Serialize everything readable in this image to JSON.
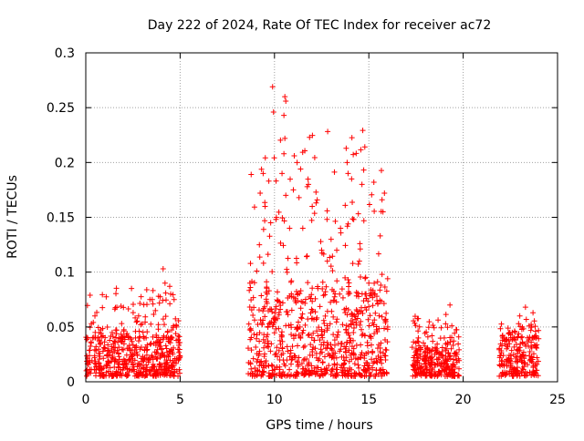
{
  "chart_data": {
    "type": "scatter",
    "title": "Day 222 of 2024, Rate Of TEC Index for receiver ac72",
    "xlabel": "GPS time / hours",
    "ylabel": "ROTI / TECUs",
    "xlim": [
      0,
      25
    ],
    "ylim": [
      0,
      0.3
    ],
    "xticks": [
      0,
      5,
      10,
      15,
      20,
      25
    ],
    "xtick_labels": [
      "0",
      "5",
      "10",
      "15",
      "20",
      "25"
    ],
    "yticks": [
      0,
      0.05,
      0.1,
      0.15,
      0.2,
      0.25,
      0.3
    ],
    "ytick_labels": [
      "0",
      "0.05",
      "0.1",
      "0.15",
      "0.2",
      "0.25",
      "0.3"
    ],
    "grid": true,
    "marker": "+",
    "colors": {
      "marker": "#ff0000",
      "grid": "#a0a0a0",
      "axis": "#000000"
    },
    "series": [
      {
        "name": "ROTI",
        "clusters": [
          {
            "x_range": [
              0.0,
              5.0
            ],
            "typical_range": [
              0.005,
              0.04
            ],
            "max": 0.1
          },
          {
            "x_range": [
              8.6,
              16.0
            ],
            "typical_range": [
              0.005,
              0.08
            ],
            "max": 0.27
          },
          {
            "x_range": [
              17.3,
              19.8
            ],
            "typical_range": [
              0.005,
              0.03
            ],
            "max": 0.07
          },
          {
            "x_range": [
              21.9,
              24.0
            ],
            "typical_range": [
              0.005,
              0.04
            ],
            "max": 0.07
          }
        ],
        "points": [
          [
            0.3,
            0.053
          ],
          [
            0.5,
            0.045
          ],
          [
            1.4,
            0.045
          ],
          [
            2.8,
            0.06
          ],
          [
            3.4,
            0.075
          ],
          [
            4.1,
            0.103
          ],
          [
            4.2,
            0.09
          ],
          [
            4.5,
            0.08
          ],
          [
            4.8,
            0.05
          ],
          [
            8.7,
            0.09
          ],
          [
            9.2,
            0.125
          ],
          [
            9.4,
            0.19
          ],
          [
            9.5,
            0.16
          ],
          [
            9.7,
            0.183
          ],
          [
            9.8,
            0.145
          ],
          [
            9.9,
            0.269
          ],
          [
            9.95,
            0.246
          ],
          [
            10.1,
            0.15
          ],
          [
            10.4,
            0.19
          ],
          [
            10.5,
            0.243
          ],
          [
            10.55,
            0.26
          ],
          [
            10.6,
            0.256
          ],
          [
            10.55,
            0.222
          ],
          [
            10.5,
            0.208
          ],
          [
            10.6,
            0.17
          ],
          [
            10.8,
            0.14
          ],
          [
            11.0,
            0.175
          ],
          [
            11.2,
            0.2
          ],
          [
            11.3,
            0.168
          ],
          [
            11.5,
            0.14
          ],
          [
            11.8,
            0.18
          ],
          [
            12.0,
            0.16
          ],
          [
            12.2,
            0.173
          ],
          [
            12.5,
            0.12
          ],
          [
            12.8,
            0.11
          ],
          [
            13.0,
            0.13
          ],
          [
            13.3,
            0.12
          ],
          [
            13.5,
            0.14
          ],
          [
            13.8,
            0.213
          ],
          [
            13.85,
            0.2
          ],
          [
            13.9,
            0.19
          ],
          [
            14.2,
            0.148
          ],
          [
            14.5,
            0.11
          ],
          [
            14.8,
            0.08
          ],
          [
            15.0,
            0.09
          ],
          [
            15.7,
            0.166
          ],
          [
            15.75,
            0.155
          ],
          [
            15.7,
            0.098
          ],
          [
            16.0,
            0.05
          ],
          [
            17.5,
            0.03
          ],
          [
            18.0,
            0.028
          ],
          [
            18.5,
            0.025
          ],
          [
            19.0,
            0.04
          ],
          [
            19.3,
            0.07
          ],
          [
            22.1,
            0.04
          ],
          [
            22.6,
            0.045
          ],
          [
            23.0,
            0.06
          ],
          [
            23.3,
            0.068
          ],
          [
            23.7,
            0.063
          ]
        ]
      }
    ]
  }
}
